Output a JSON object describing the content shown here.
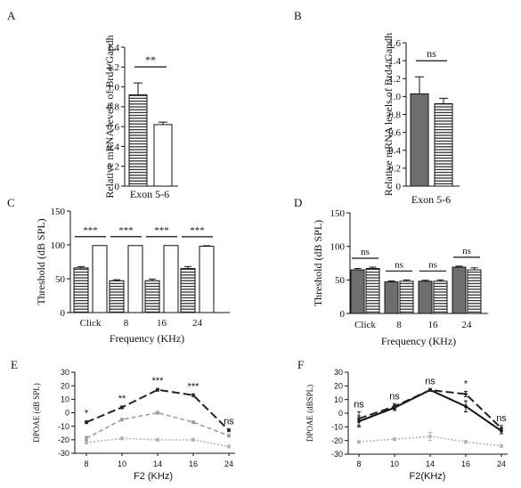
{
  "colors": {
    "ink": "#111111",
    "dark_gray": "#6e6e6e",
    "mid_gray": "#9a9a9a",
    "light_gray": "#b0b0b0"
  },
  "chart_data": [
    {
      "panel": "A",
      "type": "bar",
      "ylabel": "Relative mRNA levels of Brd4/Gapdh",
      "xlabel": "Exon 5-6",
      "ylim": [
        0,
        1.4
      ],
      "yticks": [
        "0",
        "0.2",
        "0.4",
        "0.6",
        "0.8",
        "1.0",
        "1.2",
        "1.4"
      ],
      "bars": [
        {
          "value": 0.92,
          "error": 0.12,
          "fill": "hatch"
        },
        {
          "value": 0.62,
          "error": 0.025,
          "fill": "white"
        }
      ],
      "significance": [
        "**"
      ]
    },
    {
      "panel": "B",
      "type": "bar",
      "ylabel": "Relative mRNA levels of Brd4/Gapdh",
      "xlabel": "Exon 5-6",
      "ylim": [
        0,
        1.6
      ],
      "yticks": [
        "0",
        "0.2",
        "0.4",
        "0.6",
        "0.8",
        "1.0",
        "1.2",
        "1.4",
        "1.6"
      ],
      "bars": [
        {
          "value": 1.03,
          "error": 0.19,
          "fill": "gray"
        },
        {
          "value": 0.92,
          "error": 0.06,
          "fill": "hatch"
        }
      ],
      "significance": [
        "ns"
      ]
    },
    {
      "panel": "C",
      "type": "bar",
      "ylabel": "Threshold (dB SPL)",
      "xlabel": "Frequency (KHz)",
      "ylim": [
        0,
        150
      ],
      "yticks": [
        "0",
        "50",
        "100",
        "150"
      ],
      "categories": [
        "Click",
        "8",
        "16",
        "24"
      ],
      "series": [
        {
          "fill": "hatch",
          "values": [
            66,
            47,
            47,
            65
          ],
          "errors": [
            2,
            1.5,
            2.5,
            3
          ]
        },
        {
          "fill": "white",
          "values": [
            99,
            99,
            99,
            98
          ],
          "errors": [
            0,
            0,
            0,
            0.8
          ]
        }
      ],
      "significance": [
        "***",
        "***",
        "***",
        "***"
      ]
    },
    {
      "panel": "D",
      "type": "bar",
      "ylabel": "Threshold (dB SPL)",
      "xlabel": "Frequency (KHz)",
      "ylim": [
        0,
        150
      ],
      "yticks": [
        "0",
        "50",
        "100",
        "150"
      ],
      "categories": [
        "Click",
        "8",
        "16",
        "24"
      ],
      "series": [
        {
          "fill": "gray",
          "values": [
            65,
            47,
            48,
            69
          ],
          "errors": [
            2,
            1.5,
            1.5,
            1.5
          ]
        },
        {
          "fill": "hatch",
          "values": [
            67,
            48,
            48,
            65
          ],
          "errors": [
            2,
            2,
            2,
            3
          ]
        }
      ],
      "significance": [
        "ns",
        "ns",
        "ns",
        "ns"
      ]
    },
    {
      "panel": "E",
      "type": "line",
      "ylabel": "DPOAE (dB SPL)",
      "xlabel": "F2 (KHz)",
      "ylim": [
        -30,
        30
      ],
      "yticks": [
        "-30",
        "-20",
        "-10",
        "0",
        "10",
        "20",
        "30"
      ],
      "categories": [
        "8",
        "10",
        "14",
        "16",
        "24"
      ],
      "series": [
        {
          "style": "dash-long",
          "values": [
            -7,
            4,
            17,
            13,
            -13
          ],
          "errors": [
            1,
            1,
            1,
            1,
            1
          ]
        },
        {
          "style": "dash",
          "values": [
            -19,
            -5,
            0,
            -7,
            -17
          ],
          "errors": [
            1.5,
            1,
            1,
            1,
            1
          ]
        },
        {
          "style": "dot",
          "values": [
            -22,
            -19,
            -20,
            -20,
            -25
          ],
          "errors": [
            1,
            1,
            1,
            1,
            1
          ]
        }
      ],
      "significance": [
        "*",
        "**",
        "***",
        "***",
        "ns"
      ]
    },
    {
      "panel": "F",
      "type": "line",
      "ylabel": "DPOAE (dBSPL)",
      "xlabel": "F2(KHz)",
      "ylim": [
        -30,
        30
      ],
      "yticks": [
        "-30",
        "-20",
        "-10",
        "0",
        "10",
        "20",
        "30"
      ],
      "categories": [
        "8",
        "10",
        "14",
        "16",
        "24"
      ],
      "series": [
        {
          "style": "solid",
          "values": [
            -6,
            4,
            17,
            5,
            -13
          ],
          "errors": [
            4,
            2,
            1,
            4,
            2
          ]
        },
        {
          "style": "dash-long",
          "values": [
            -4,
            5,
            17,
            14,
            -11
          ],
          "errors": [
            5,
            2,
            1,
            2,
            2
          ]
        },
        {
          "style": "dot",
          "values": [
            -21,
            -19,
            -17,
            -21,
            -24
          ],
          "errors": [
            1,
            1,
            3,
            1,
            1
          ]
        }
      ],
      "significance": [
        "ns",
        "ns",
        "ns",
        "*",
        "ns"
      ]
    }
  ]
}
